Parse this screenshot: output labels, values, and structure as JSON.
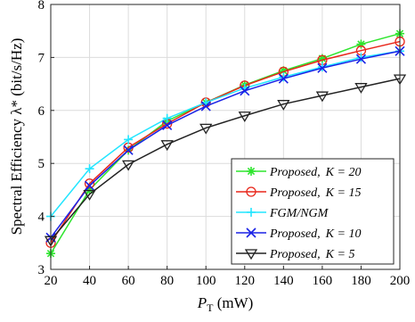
{
  "chart_data": {
    "type": "line",
    "xlabel": "P",
    "xlabel_sub": "T",
    "xlabel_unit": "(mW)",
    "ylabel": "Spectral Efficiency λ* (bit/s/Hz)",
    "x": [
      20,
      40,
      60,
      80,
      100,
      120,
      140,
      160,
      180,
      200
    ],
    "xlim": [
      20,
      200
    ],
    "ylim": [
      3,
      8
    ],
    "xticks": [
      "20",
      "40",
      "60",
      "80",
      "100",
      "120",
      "140",
      "160",
      "180",
      "200"
    ],
    "yticks": [
      "3",
      "4",
      "5",
      "6",
      "7",
      "8"
    ],
    "grid": true,
    "legend_position": "bottom-right",
    "series": [
      {
        "name": "Proposed, K = 20",
        "label_main": "Proposed,",
        "label_k": "K = 20",
        "color": "#2ee52e",
        "marker": "asterisk",
        "values": [
          3.3,
          4.5,
          5.25,
          5.8,
          6.15,
          6.48,
          6.75,
          6.98,
          7.25,
          7.45
        ]
      },
      {
        "name": "Proposed, K = 15",
        "label_main": "Proposed,",
        "label_k": "K = 15",
        "color": "#e8261a",
        "marker": "circle",
        "values": [
          3.5,
          4.62,
          5.3,
          5.75,
          6.15,
          6.47,
          6.73,
          6.95,
          7.13,
          7.3
        ]
      },
      {
        "name": "FGM/NGM",
        "label_main": "FGM/NGM",
        "label_k": "",
        "color": "#22e5ff",
        "marker": "plus",
        "values": [
          4.0,
          4.9,
          5.45,
          5.85,
          6.15,
          6.42,
          6.63,
          6.82,
          7.0,
          7.12
        ]
      },
      {
        "name": "Proposed, K = 10",
        "label_main": "Proposed,",
        "label_k": "K = 10",
        "color": "#1a22e6",
        "marker": "x",
        "values": [
          3.6,
          4.58,
          5.25,
          5.72,
          6.08,
          6.37,
          6.6,
          6.8,
          6.97,
          7.12
        ]
      },
      {
        "name": "Proposed, K = 5",
        "label_main": "Proposed,",
        "label_k": "K = 5",
        "color": "#222222",
        "marker": "triangle-down",
        "values": [
          3.55,
          4.42,
          4.98,
          5.36,
          5.67,
          5.9,
          6.12,
          6.28,
          6.44,
          6.6
        ]
      }
    ]
  }
}
